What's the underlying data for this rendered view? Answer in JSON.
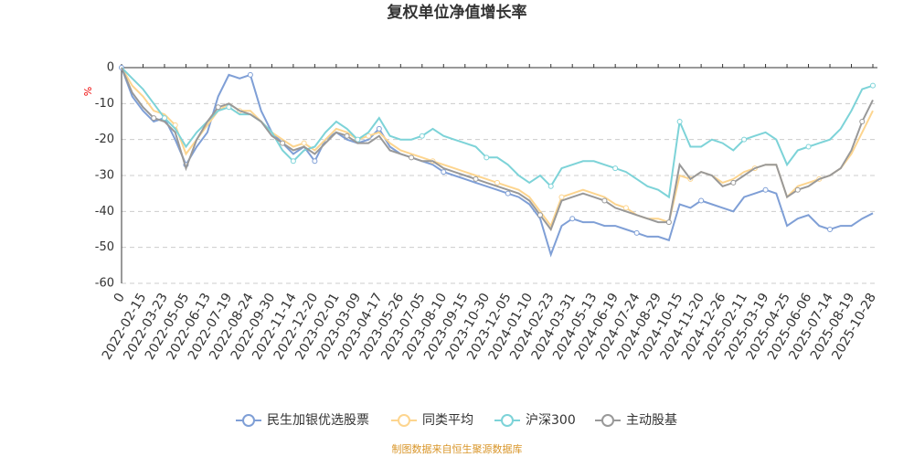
{
  "chart_data": {
    "type": "line",
    "title": "复权单位净值增长率",
    "y_label": "%",
    "source": "制图数据来自恒生聚源数据库",
    "categories": [
      "0",
      null,
      "2022-02-15",
      null,
      "2022-03-23",
      null,
      "2022-05-05",
      null,
      "2022-06-13",
      null,
      "2022-07-19",
      null,
      "2022-08-24",
      null,
      "2022-09-30",
      null,
      "2022-11-14",
      null,
      "2022-12-20",
      null,
      "2023-02-01",
      null,
      "2023-03-09",
      null,
      "2023-04-17",
      null,
      "2023-05-26",
      null,
      "2023-07-05",
      null,
      "2023-08-10",
      null,
      "2023-09-15",
      null,
      "2023-10-30",
      null,
      "2023-12-05",
      null,
      "2024-01-10",
      null,
      "2024-02-23",
      null,
      "2024-03-31",
      null,
      "2024-05-13",
      null,
      "2024-06-19",
      null,
      "2024-07-24",
      null,
      "2024-08-29",
      null,
      "2024-10-15",
      null,
      "2024-11-20",
      null,
      "2024-12-26",
      null,
      "2025-02-11",
      null,
      "2025-03-19",
      null,
      "2025-04-25",
      null,
      "2025-06-06",
      null,
      "2025-07-14",
      null,
      "2025-08-19",
      null,
      "2025-10-28"
    ],
    "series": [
      {
        "name": "民生加银优选股票",
        "color": "#7f9fd6",
        "values": [
          0,
          -8,
          -12,
          -15,
          -14,
          -20,
          -27,
          -22,
          -18,
          -8,
          -2,
          -3,
          -2,
          -12,
          -18,
          -21,
          -24,
          -22,
          -26,
          -20,
          -18,
          -20,
          -21,
          -20,
          -17,
          -22,
          -24,
          -25,
          -26,
          -27,
          -29,
          -30,
          -31,
          -32,
          -33,
          -34,
          -35,
          -36,
          -38,
          -42,
          -52,
          -44,
          -42,
          -43,
          -43,
          -44,
          -44,
          -45,
          -46,
          -47,
          -47,
          -48,
          -38,
          -39,
          -37,
          -38,
          -39,
          -40,
          -36,
          -35,
          -34,
          -35,
          -44,
          -42,
          -41,
          -44,
          -45,
          -44,
          -44,
          -42,
          -40.5
        ]
      },
      {
        "name": "同类平均",
        "color": "#fdd58f",
        "values": [
          0,
          -5,
          -8,
          -12,
          -13,
          -16,
          -24,
          -20,
          -16,
          -12,
          -10,
          -12,
          -12,
          -15,
          -18,
          -20,
          -22,
          -21,
          -23,
          -20,
          -17,
          -18,
          -20,
          -19,
          -18,
          -21,
          -23,
          -24,
          -25,
          -26,
          -27,
          -28,
          -29,
          -30,
          -31,
          -32,
          -33,
          -34,
          -36,
          -40,
          -44,
          -36,
          -35,
          -34,
          -35,
          -36,
          -38,
          -39,
          -41,
          -42,
          -42,
          -43,
          -30,
          -31,
          -29,
          -30,
          -32,
          -31,
          -29,
          -28,
          -27,
          -27,
          -36,
          -33,
          -32,
          -31,
          -30,
          -28,
          -24,
          -18,
          -12
        ]
      },
      {
        "name": "沪深300",
        "color": "#7dd3d8",
        "values": [
          0,
          -3,
          -6,
          -10,
          -14,
          -17,
          -22,
          -18,
          -15,
          -12,
          -11,
          -13,
          -13,
          -15,
          -18,
          -23,
          -26,
          -23,
          -22,
          -18,
          -15,
          -17,
          -20,
          -18,
          -14,
          -19,
          -20,
          -20,
          -19,
          -17,
          -19,
          -20,
          -21,
          -22,
          -25,
          -25,
          -27,
          -30,
          -32,
          -30,
          -33,
          -28,
          -27,
          -26,
          -26,
          -27,
          -28,
          -29,
          -31,
          -33,
          -34,
          -36,
          -15,
          -22,
          -22,
          -20,
          -21,
          -23,
          -20,
          -19,
          -18,
          -20,
          -27,
          -23,
          -22,
          -21,
          -20,
          -17,
          -12,
          -6,
          -5
        ]
      },
      {
        "name": "主动股基",
        "color": "#999999",
        "values": [
          0,
          -7,
          -11,
          -14,
          -15,
          -18,
          -28,
          -20,
          -15,
          -11,
          -10,
          -12,
          -13,
          -15,
          -19,
          -21,
          -23,
          -22,
          -24,
          -21,
          -18,
          -19,
          -21,
          -21,
          -19,
          -23,
          -24,
          -25,
          -26,
          -26,
          -28,
          -29,
          -30,
          -31,
          -32,
          -33,
          -34,
          -35,
          -37,
          -41,
          -45,
          -37,
          -36,
          -35,
          -36,
          -37,
          -39,
          -40,
          -41,
          -42,
          -43,
          -43,
          -27,
          -31,
          -29,
          -30,
          -33,
          -32,
          -30,
          -28,
          -27,
          -27,
          -36,
          -34,
          -33,
          -31,
          -30,
          -28,
          -23,
          -15,
          -9
        ]
      }
    ],
    "ylim": [
      -60,
      0
    ],
    "yticks": [
      0,
      -10,
      -20,
      -30,
      -40,
      -50,
      -60
    ],
    "grid": true
  }
}
